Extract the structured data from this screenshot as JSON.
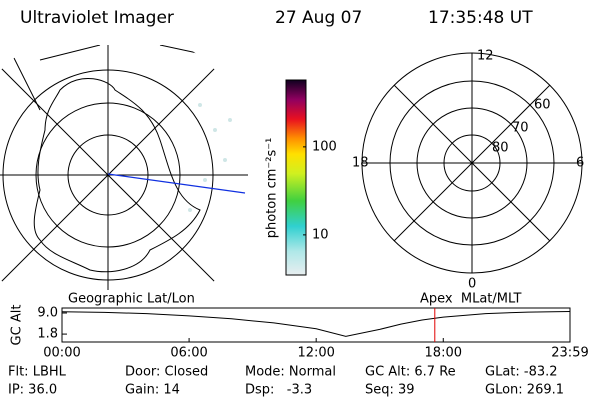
{
  "header": {
    "title": "Ultraviolet Imager",
    "date": "27 Aug 07",
    "time": "17:35:48 UT"
  },
  "colorbar": {
    "label": "photon cm⁻²s⁻¹",
    "log": true,
    "lim": [
      3.5,
      575
    ],
    "ticks": [
      10,
      100
    ]
  },
  "mlt_plot": {
    "mlt_labels": [
      "12",
      "18",
      "6",
      "0"
    ],
    "lat_labels": [
      "60",
      "70",
      "80"
    ]
  },
  "orbit": {
    "type": "line",
    "left_label": "Geographic Lat/Lon",
    "right_label": "Apex  MLat/MLT",
    "ylabel": "GC Alt",
    "xlim": [
      0,
      23.983
    ],
    "ylim": [
      -0.9,
      10.7
    ],
    "xticks": [
      {
        "value": 0,
        "label": "00:00"
      },
      {
        "value": 6,
        "label": "06:00"
      },
      {
        "value": 12,
        "label": "12:00"
      },
      {
        "value": 18,
        "label": "18:00"
      },
      {
        "value": 23.983,
        "label": "23:59"
      }
    ],
    "yticks": [
      {
        "value": 9.0,
        "label": "9.0"
      },
      {
        "value": 1.8,
        "label": "1.8"
      }
    ],
    "x": [
      0,
      2,
      4,
      6,
      8,
      10,
      12,
      13.4,
      15,
      16,
      17,
      18,
      20,
      22,
      23.98
    ],
    "values": [
      9.4,
      9.2,
      8.8,
      8.0,
      7.0,
      5.6,
      3.6,
      1.0,
      3.4,
      5.2,
      6.6,
      7.6,
      8.8,
      9.3,
      9.5
    ],
    "color": "#000000",
    "current_x": 17.6,
    "current_color": "#e00000"
  },
  "info": [
    [
      "Flt: LBHL",
      "Door: Closed",
      "Mode: Normal",
      "GC Alt: 6.7 Re",
      "GLat: -83.2"
    ],
    [
      "IP: 36.0",
      "Gain: 14",
      "Dsp:   -3.3",
      "Seq: 39",
      "GLon: 269.1"
    ]
  ]
}
